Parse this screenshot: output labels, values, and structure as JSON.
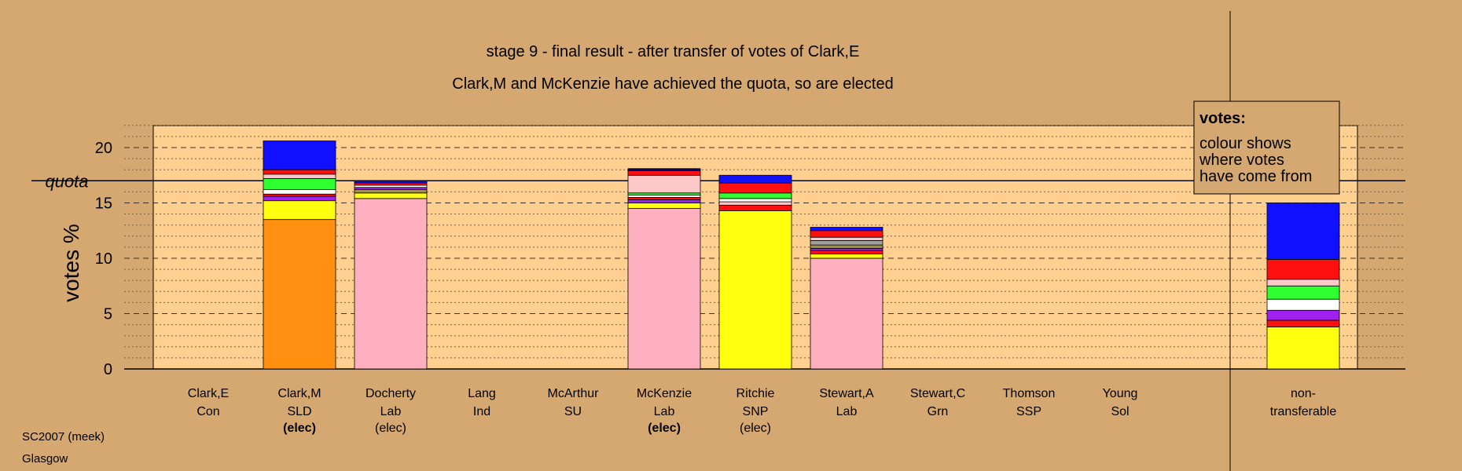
{
  "chart_data": {
    "type": "bar",
    "stacked": true,
    "title": "stage 9 - final result - after transfer of votes of Clark,E",
    "subtitle": "Clark,M and McKenzie have achieved the quota, so are elected",
    "ylabel": "votes %",
    "ylim": [
      0,
      22
    ],
    "yticks": [
      0,
      5,
      10,
      15,
      20
    ],
    "quota": 17,
    "quota_label": "quota",
    "grid": "dashed horizontal",
    "legend": {
      "title": "votes:",
      "lines": [
        "colour shows",
        "where votes",
        "have come from"
      ],
      "placement": "top-right"
    },
    "colors": {
      "orange": "#ff9010",
      "pink": "#ffb0c0",
      "yellow": "#ffff10",
      "purple": "#a020f0",
      "red": "#ff1010",
      "green": "#30ff30",
      "white": "#ffffff",
      "blue": "#1010ff",
      "lightpink": "#ffc8c8",
      "gray": "#a0a0a0",
      "olive": "#a09050",
      "darkblue": "#000080",
      "black": "#000000"
    },
    "candidates": [
      {
        "name": "Clark,E",
        "party": "Con",
        "status": "",
        "status_bold": false,
        "segments": []
      },
      {
        "name": "Clark,M",
        "party": "SLD",
        "status": "(elec)",
        "status_bold": true,
        "segments": [
          {
            "color": "orange",
            "value": 13.5
          },
          {
            "color": "yellow",
            "value": 1.7
          },
          {
            "color": "purple",
            "value": 0.4
          },
          {
            "color": "red",
            "value": 0.2
          },
          {
            "color": "white",
            "value": 0.4
          },
          {
            "color": "green",
            "value": 1.0
          },
          {
            "color": "lightpink",
            "value": 0.4
          },
          {
            "color": "red",
            "value": 0.4
          },
          {
            "color": "blue",
            "value": 2.6
          }
        ]
      },
      {
        "name": "Docherty",
        "party": "Lab",
        "status": "(elec)",
        "status_bold": false,
        "segments": [
          {
            "color": "pink",
            "value": 15.4
          },
          {
            "color": "yellow",
            "value": 0.5
          },
          {
            "color": "olive",
            "value": 0.3
          },
          {
            "color": "purple",
            "value": 0.2
          },
          {
            "color": "white",
            "value": 0.2
          },
          {
            "color": "red",
            "value": 0.2
          },
          {
            "color": "blue",
            "value": 0.2
          }
        ]
      },
      {
        "name": "Lang",
        "party": "Ind",
        "status": "",
        "status_bold": false,
        "segments": []
      },
      {
        "name": "McArthur",
        "party": "SU",
        "status": "",
        "status_bold": false,
        "segments": []
      },
      {
        "name": "McKenzie",
        "party": "Lab",
        "status": "(elec)",
        "status_bold": true,
        "segments": [
          {
            "color": "pink",
            "value": 14.5
          },
          {
            "color": "yellow",
            "value": 0.5
          },
          {
            "color": "purple",
            "value": 0.3
          },
          {
            "color": "red",
            "value": 0.2
          },
          {
            "color": "white",
            "value": 0.2
          },
          {
            "color": "green",
            "value": 0.2
          },
          {
            "color": "lightpink",
            "value": 1.6
          },
          {
            "color": "red",
            "value": 0.4
          },
          {
            "color": "darkblue",
            "value": 0.2
          }
        ]
      },
      {
        "name": "Ritchie",
        "party": "SNP",
        "status": "(elec)",
        "status_bold": false,
        "segments": [
          {
            "color": "yellow",
            "value": 14.3
          },
          {
            "color": "red",
            "value": 0.5
          },
          {
            "color": "lightpink",
            "value": 0.3
          },
          {
            "color": "white",
            "value": 0.3
          },
          {
            "color": "green",
            "value": 0.5
          },
          {
            "color": "red",
            "value": 0.9
          },
          {
            "color": "blue",
            "value": 0.7
          }
        ]
      },
      {
        "name": "Stewart,A",
        "party": "Lab",
        "status": "",
        "status_bold": false,
        "segments": [
          {
            "color": "pink",
            "value": 10.0
          },
          {
            "color": "yellow",
            "value": 0.4
          },
          {
            "color": "red",
            "value": 0.3
          },
          {
            "color": "purple",
            "value": 0.2
          },
          {
            "color": "olive",
            "value": 0.3
          },
          {
            "color": "gray",
            "value": 0.4
          },
          {
            "color": "lightpink",
            "value": 0.3
          },
          {
            "color": "red",
            "value": 0.6
          },
          {
            "color": "blue",
            "value": 0.3
          }
        ]
      },
      {
        "name": "Stewart,C",
        "party": "Grn",
        "status": "",
        "status_bold": false,
        "segments": []
      },
      {
        "name": "Thomson",
        "party": "SSP",
        "status": "",
        "status_bold": false,
        "segments": []
      },
      {
        "name": "Young",
        "party": "Sol",
        "status": "",
        "status_bold": false,
        "segments": []
      }
    ],
    "nontransferable": {
      "label_line1": "non-",
      "label_line2": "transferable",
      "segments": [
        {
          "color": "yellow",
          "value": 3.8
        },
        {
          "color": "red",
          "value": 0.6
        },
        {
          "color": "purple",
          "value": 0.9
        },
        {
          "color": "white",
          "value": 1.0
        },
        {
          "color": "green",
          "value": 1.2
        },
        {
          "color": "lightpink",
          "value": 0.6
        },
        {
          "color": "red",
          "value": 1.8
        },
        {
          "color": "blue",
          "value": 5.1
        }
      ]
    }
  },
  "footer": {
    "line1": "SC2007 (meek)",
    "line2": "Glasgow"
  }
}
